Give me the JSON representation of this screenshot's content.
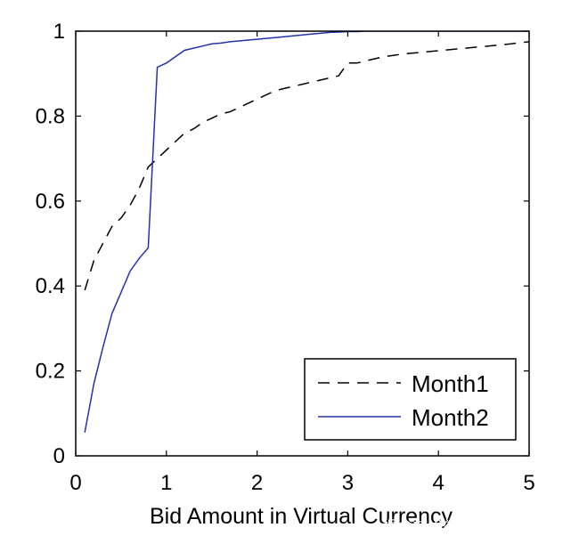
{
  "chart_data": {
    "type": "line",
    "title": "",
    "xlabel": "Bid Amount in Virtual Currency",
    "ylabel": "",
    "xlim": [
      0,
      5
    ],
    "ylim": [
      0,
      1
    ],
    "xticks": [
      "0",
      "1",
      "2",
      "3",
      "4",
      "5"
    ],
    "yticks": [
      "0",
      "0.2",
      "0.4",
      "0.6",
      "0.8",
      "1"
    ],
    "grid": false,
    "legend_position": "bottom-right",
    "series": [
      {
        "name": "Month1",
        "style": "dashed",
        "color": "#000000",
        "x": [
          0.1,
          0.2,
          0.3,
          0.4,
          0.5,
          0.6,
          0.7,
          0.8,
          0.9,
          1.0,
          1.1,
          1.2,
          1.3,
          1.4,
          1.5,
          1.6,
          1.7,
          1.8,
          1.9,
          2.0,
          2.1,
          2.2,
          2.3,
          2.4,
          2.5,
          2.6,
          2.7,
          2.8,
          2.9,
          3.0,
          3.1,
          3.2,
          3.3,
          3.4,
          3.5,
          3.6,
          3.7,
          3.8,
          3.9,
          4.0,
          4.1,
          4.2,
          4.3,
          4.4,
          4.5,
          4.6,
          4.7,
          4.8,
          4.9,
          5.0
        ],
        "y": [
          0.39,
          0.46,
          0.5,
          0.54,
          0.56,
          0.59,
          0.63,
          0.68,
          0.7,
          0.72,
          0.74,
          0.76,
          0.77,
          0.785,
          0.795,
          0.805,
          0.81,
          0.82,
          0.83,
          0.84,
          0.85,
          0.86,
          0.865,
          0.87,
          0.875,
          0.88,
          0.885,
          0.89,
          0.895,
          0.925,
          0.925,
          0.93,
          0.935,
          0.94,
          0.943,
          0.946,
          0.948,
          0.95,
          0.952,
          0.954,
          0.956,
          0.958,
          0.96,
          0.962,
          0.964,
          0.966,
          0.968,
          0.97,
          0.973,
          0.975
        ]
      },
      {
        "name": "Month2",
        "style": "solid",
        "color": "#2233aa",
        "x": [
          0.1,
          0.2,
          0.3,
          0.4,
          0.5,
          0.6,
          0.7,
          0.8,
          0.9,
          1.0,
          1.1,
          1.2,
          1.3,
          1.4,
          1.5,
          1.6,
          1.7,
          1.8,
          1.9,
          2.0,
          2.1,
          2.2,
          2.3,
          2.4,
          2.5,
          2.6,
          2.7,
          2.8,
          2.9,
          3.0,
          3.1,
          3.2,
          3.3,
          5.0
        ],
        "y": [
          0.055,
          0.17,
          0.255,
          0.335,
          0.385,
          0.435,
          0.465,
          0.49,
          0.915,
          0.925,
          0.94,
          0.955,
          0.96,
          0.965,
          0.97,
          0.972,
          0.975,
          0.977,
          0.979,
          0.981,
          0.983,
          0.985,
          0.987,
          0.989,
          0.991,
          0.993,
          0.995,
          0.997,
          0.998,
          0.999,
          0.999,
          1.0,
          1.0,
          1.0
        ]
      }
    ]
  },
  "watermark": "掘金技术社区 @ magicwt",
  "colors": {
    "axis": "#000000",
    "watermark_fill": "#ffffff"
  }
}
